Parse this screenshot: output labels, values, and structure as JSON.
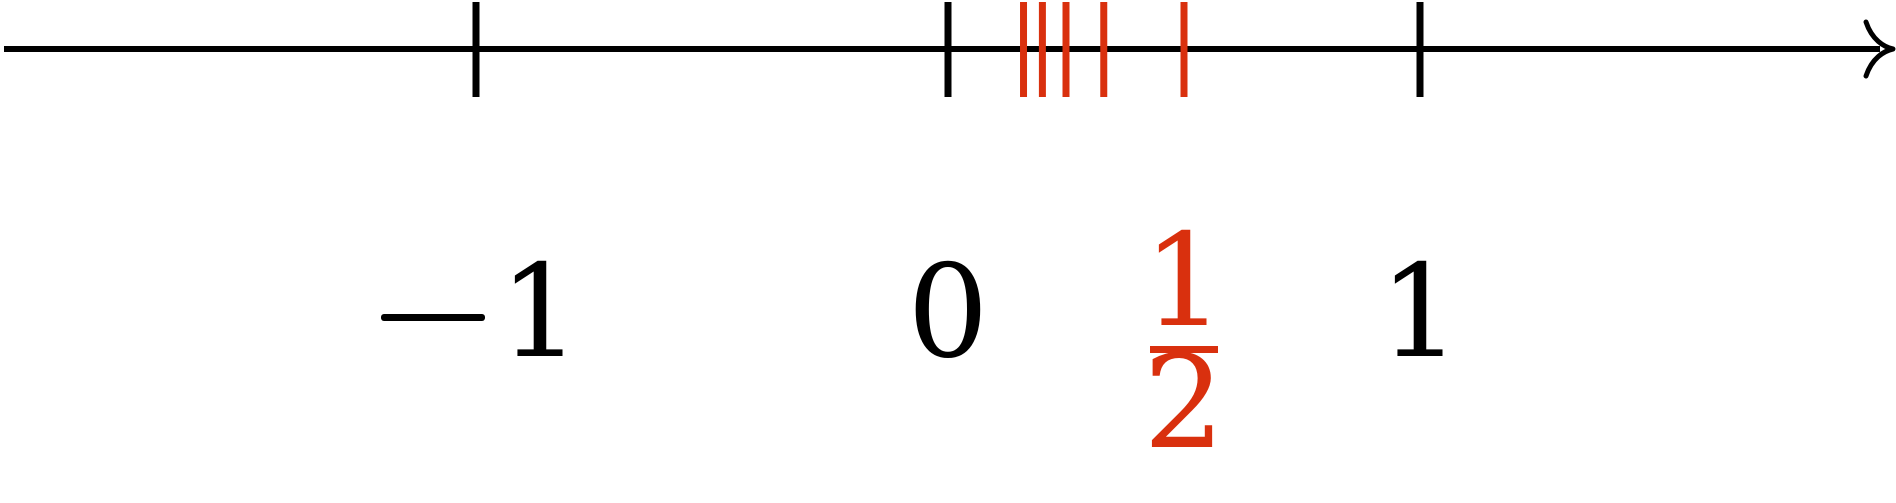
{
  "colors": {
    "axis": "#000000",
    "highlight": "#d9300e"
  },
  "axis": {
    "direction": "right",
    "arrowhead_icon": "right-arrowhead-icon",
    "min": -1.5,
    "max": 2,
    "integer_ticks": [
      -1,
      0,
      1
    ]
  },
  "labels": {
    "minus_one": "−1",
    "zero": "0",
    "one": "1",
    "half_numerator": "1",
    "half_denominator": "2"
  },
  "highlighted_points": [
    0.16,
    0.2,
    0.25,
    0.33,
    0.5
  ]
}
